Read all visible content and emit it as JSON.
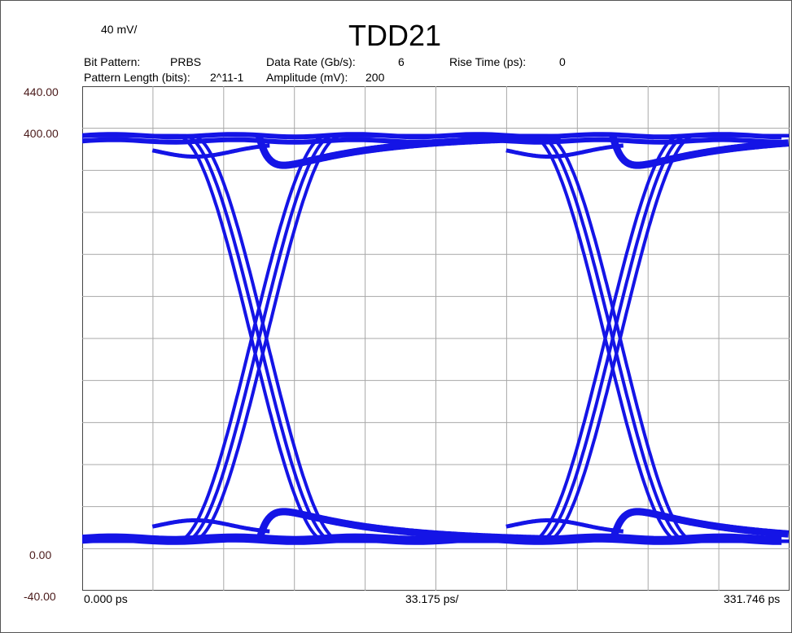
{
  "header": {
    "scale_label": "40 mV/",
    "title": "TDD21",
    "params": {
      "bit_pattern_label": "Bit Pattern:",
      "bit_pattern_value": "PRBS",
      "data_rate_label": "Data Rate (Gb/s):",
      "data_rate_value": "6",
      "rise_time_label": "Rise Time (ps):",
      "rise_time_value": "0",
      "pattern_length_label": "Pattern Length (bits):",
      "pattern_length_value": "2^11-1",
      "amplitude_label": "Amplitude (mV):",
      "amplitude_value": "200"
    }
  },
  "axes": {
    "y_ticks": [
      "440.00",
      "400.00",
      "0.00",
      "-40.00"
    ],
    "x_start": "0.000 ps",
    "x_division": "33.175 ps/",
    "x_end": "331.746 ps"
  },
  "chart_data": {
    "type": "line",
    "title": "TDD21",
    "xlabel": "",
    "ylabel": "",
    "x_units": "ps",
    "y_units": "mV",
    "xlim": [
      0,
      331.746
    ],
    "ylim": [
      -40,
      440
    ],
    "x_div": 33.175,
    "y_div": 40,
    "grid": true,
    "trace_color": "#1414e6",
    "high_level": 393,
    "low_level": 7,
    "crossings_ps": [
      82.9,
      248.8
    ],
    "ui_ps": 166.7,
    "series": [
      {
        "name": "",
        "values": [
          [
            0,
            384
          ],
          [
            25,
            392
          ],
          [
            55,
            394
          ],
          [
            70,
            388
          ],
          [
            82.9,
            200
          ],
          [
            95,
            8
          ],
          [
            120,
            7
          ],
          [
            165,
            7
          ],
          [
            192,
            7
          ],
          [
            220,
            7
          ],
          [
            240,
            10
          ],
          [
            248.8,
            200
          ],
          [
            258,
            388
          ],
          [
            270,
            394
          ],
          [
            300,
            393
          ],
          [
            331.7,
            393
          ]
        ]
      }
    ]
  }
}
